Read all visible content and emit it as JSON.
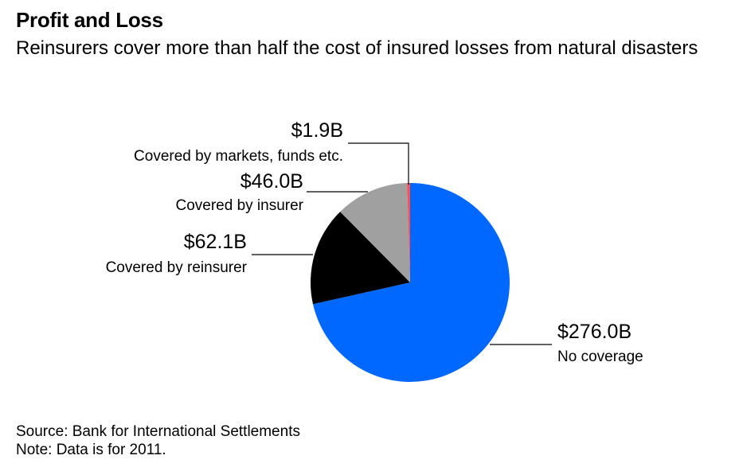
{
  "header": {
    "title": "Profit and Loss",
    "subtitle": "Reinsurers cover more than half the cost of insured losses from natural disasters"
  },
  "footer": {
    "source": "Source: Bank for International Settlements",
    "note": "Note: Data is for 2011."
  },
  "chart_data": {
    "type": "pie",
    "title": "Profit and Loss",
    "subtitle": "Reinsurers cover more than half the cost of insured losses from natural disasters",
    "unit": "billion USD",
    "slices": [
      {
        "name": "No coverage",
        "value": 276.0,
        "value_label": "$276.0B",
        "color": "#0068ff"
      },
      {
        "name": "Covered by reinsurer",
        "value": 62.1,
        "value_label": "$62.1B",
        "color": "#000000"
      },
      {
        "name": "Covered by insurer",
        "value": 46.0,
        "value_label": "$46.0B",
        "color": "#a0a0a0"
      },
      {
        "name": "Covered by markets, funds etc.",
        "value": 1.9,
        "value_label": "$1.9B",
        "color": "#ff4f4f"
      }
    ],
    "legend": "none"
  }
}
